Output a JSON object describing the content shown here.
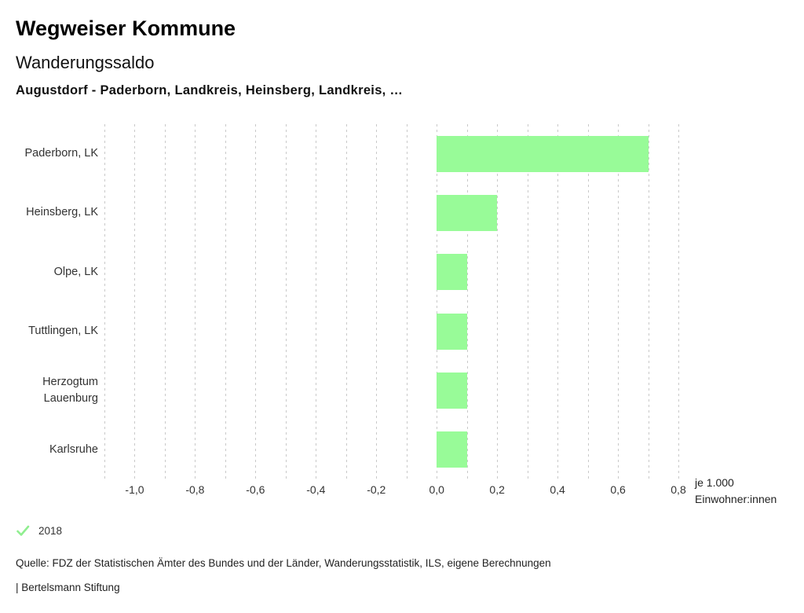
{
  "header": {
    "app_title": "Wegweiser Kommune",
    "chart_title": "Wanderungssaldo",
    "selection": "Augustdorf - Paderborn, Landkreis, Heinsberg, Landkreis, …"
  },
  "chart_data": {
    "type": "bar",
    "orientation": "horizontal",
    "title": "Wanderungssaldo",
    "categories": [
      "Paderborn, LK",
      "Heinsberg, LK",
      "Olpe, LK",
      "Tuttlingen, LK",
      "Herzogtum Lauenburg",
      "Karlsruhe"
    ],
    "series": [
      {
        "name": "2018",
        "values": [
          0.7,
          0.2,
          0.1,
          0.1,
          0.1,
          0.1
        ]
      }
    ],
    "xlim": [
      -1.1,
      0.8
    ],
    "grid_step": 0.1,
    "grid": "dashed-vertical",
    "x_ticks": [
      {
        "value": -1.0,
        "label": "-1,0"
      },
      {
        "value": -0.8,
        "label": "-0,8"
      },
      {
        "value": -0.6,
        "label": "-0,6"
      },
      {
        "value": -0.4,
        "label": "-0,4"
      },
      {
        "value": -0.2,
        "label": "-0,2"
      },
      {
        "value": 0.0,
        "label": "0,0"
      },
      {
        "value": 0.2,
        "label": "0,2"
      },
      {
        "value": 0.4,
        "label": "0,4"
      },
      {
        "value": 0.6,
        "label": "0,6"
      },
      {
        "value": 0.8,
        "label": "0,8"
      }
    ],
    "x_axis_unit": [
      "je 1.000",
      "Einwohner:innen"
    ],
    "bar_color": "#98fb98",
    "gridline_color": "#c9c9c9",
    "legend_position": "bottom-left"
  },
  "legend": {
    "items": [
      {
        "label": "2018",
        "checked": true,
        "check_color": "#90ee90"
      }
    ]
  },
  "footer": {
    "source": "Quelle: FDZ der Statistischen Ämter des Bundes und der Länder, Wanderungsstatistik, ILS, eigene Berechnungen",
    "attribution": "| Bertelsmann Stiftung"
  }
}
